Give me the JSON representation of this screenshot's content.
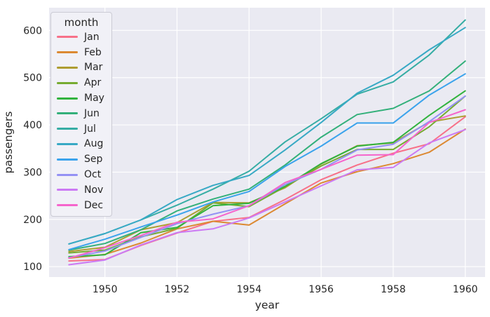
{
  "chart_data": {
    "type": "line",
    "title": "",
    "xlabel": "year",
    "ylabel": "passengers",
    "x": [
      1949,
      1950,
      1951,
      1952,
      1953,
      1954,
      1955,
      1956,
      1957,
      1958,
      1959,
      1960
    ],
    "series": [
      {
        "name": "Jan",
        "color": "#f77189",
        "values": [
          112,
          115,
          145,
          171,
          196,
          204,
          242,
          284,
          315,
          340,
          360,
          417
        ]
      },
      {
        "name": "Feb",
        "color": "#dc8932",
        "values": [
          118,
          126,
          150,
          180,
          196,
          188,
          233,
          277,
          301,
          318,
          342,
          391
        ]
      },
      {
        "name": "Mar",
        "color": "#ae9d31",
        "values": [
          132,
          141,
          178,
          193,
          236,
          235,
          267,
          317,
          356,
          362,
          406,
          419
        ]
      },
      {
        "name": "Apr",
        "color": "#77ab31",
        "values": [
          129,
          135,
          163,
          181,
          235,
          227,
          269,
          313,
          348,
          348,
          396,
          461
        ]
      },
      {
        "name": "May",
        "color": "#31b33e",
        "values": [
          121,
          125,
          172,
          183,
          229,
          234,
          270,
          318,
          355,
          363,
          420,
          472
        ]
      },
      {
        "name": "Jun",
        "color": "#33b07a",
        "values": [
          135,
          149,
          178,
          218,
          243,
          264,
          315,
          374,
          422,
          435,
          472,
          535
        ]
      },
      {
        "name": "Jul",
        "color": "#36ada4",
        "values": [
          148,
          170,
          199,
          230,
          264,
          302,
          364,
          413,
          465,
          491,
          548,
          622
        ]
      },
      {
        "name": "Aug",
        "color": "#38a9c5",
        "values": [
          148,
          170,
          199,
          242,
          272,
          293,
          347,
          405,
          467,
          505,
          559,
          606
        ]
      },
      {
        "name": "Sep",
        "color": "#3ba3ec",
        "values": [
          136,
          158,
          184,
          209,
          237,
          259,
          312,
          355,
          404,
          404,
          463,
          508
        ]
      },
      {
        "name": "Oct",
        "color": "#9491f4",
        "values": [
          119,
          133,
          162,
          191,
          211,
          229,
          274,
          306,
          347,
          359,
          407,
          461
        ]
      },
      {
        "name": "Nov",
        "color": "#cc7af4",
        "values": [
          104,
          114,
          146,
          172,
          180,
          203,
          237,
          271,
          305,
          310,
          362,
          390
        ]
      },
      {
        "name": "Dec",
        "color": "#f565cc",
        "values": [
          118,
          140,
          166,
          194,
          201,
          229,
          278,
          306,
          336,
          337,
          405,
          432
        ]
      }
    ],
    "legend": {
      "title": "month",
      "position": "upper left"
    },
    "xticks": [
      1950,
      1952,
      1954,
      1956,
      1958,
      1960
    ],
    "yticks": [
      100,
      200,
      300,
      400,
      500,
      600
    ],
    "xlim": [
      1948.45,
      1960.55
    ],
    "ylim": [
      78,
      648
    ],
    "grid": true,
    "styles": {
      "figure_bg": "#ffffff",
      "axes_bg": "#eaeaf2",
      "grid_color": "#ffffff",
      "text_color": "#262626",
      "legend_bg": "#f1f1f7",
      "legend_border": "#cbcbd4"
    }
  }
}
